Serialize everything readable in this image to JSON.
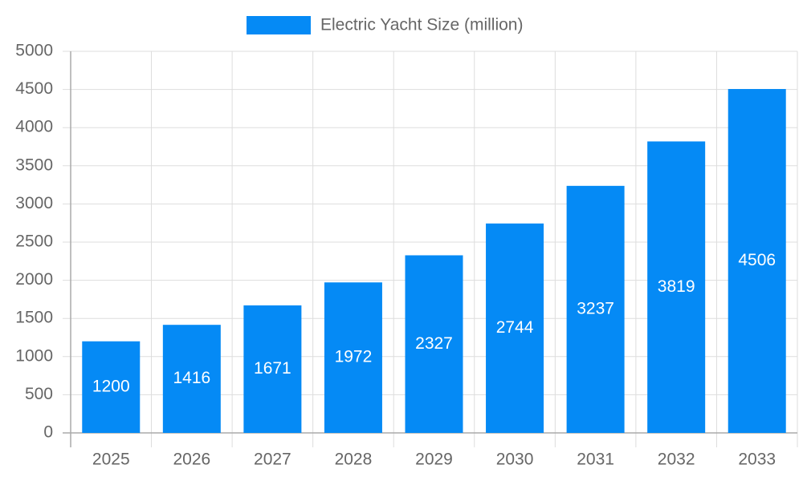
{
  "chart_data": {
    "type": "bar",
    "legend": "Electric Yacht Size (million)",
    "categories": [
      "2025",
      "2026",
      "2027",
      "2028",
      "2029",
      "2030",
      "2031",
      "2032",
      "2033"
    ],
    "values": [
      1200,
      1416,
      1671,
      1972,
      2327,
      2744,
      3237,
      3819,
      4506
    ],
    "color": "#058af5",
    "ylim": [
      0,
      5000
    ],
    "yticks": [
      0,
      500,
      1000,
      1500,
      2000,
      2500,
      3000,
      3500,
      4000,
      4500,
      5000
    ],
    "grid": true
  }
}
